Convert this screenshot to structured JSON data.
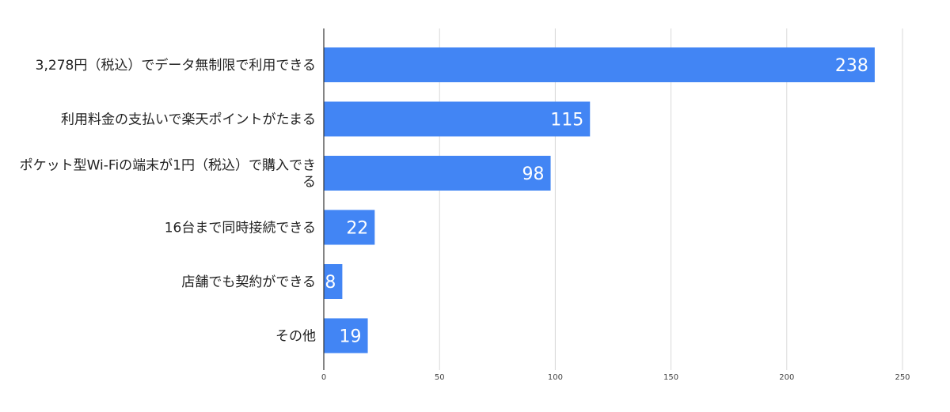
{
  "chart_data": {
    "type": "bar",
    "orientation": "horizontal",
    "categories": [
      [
        "3,278円（税込）でデータ無制限で利用できる"
      ],
      [
        "利用料金の支払いで楽天ポイントがたまる"
      ],
      [
        "ポケット型Wi-Fiの端末が1円（税込）で購入でき",
        "る"
      ],
      [
        "16台まで同時接続できる"
      ],
      [
        "店舗でも契約ができる"
      ],
      [
        "その他"
      ]
    ],
    "values": [
      238,
      115,
      98,
      22,
      8,
      19
    ],
    "xlim": [
      0,
      250
    ],
    "x_ticks": [
      0,
      50,
      100,
      150,
      200,
      250
    ],
    "grid": true,
    "legend": "none",
    "bar_color": "#4285f4"
  }
}
